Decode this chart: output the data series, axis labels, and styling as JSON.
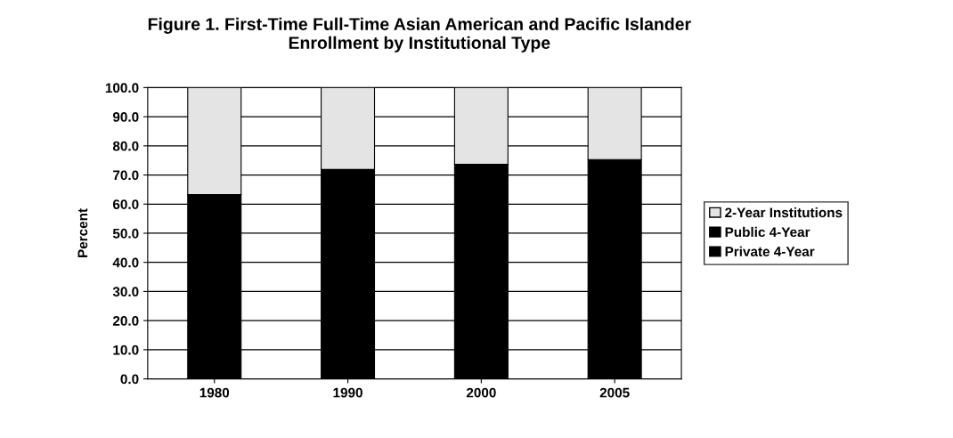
{
  "chart_data": {
    "type": "bar",
    "stacked": true,
    "title": "Figure 1. First-Time Full-Time Asian American and Pacific Islander\nEnrollment by Institutional Type",
    "ylabel": "Percent",
    "categories": [
      "1980",
      "1990",
      "2000",
      "2005"
    ],
    "series": [
      {
        "name": "Private 4-Year",
        "color": "#000000",
        "values": [
          63.3,
          71.9,
          73.7,
          75.3
        ]
      },
      {
        "name": "Public 4-Year",
        "color": "#000000",
        "values": [
          null,
          null,
          null,
          null
        ]
      },
      {
        "name": "2-Year Institutions",
        "color": "#e4e4e4",
        "values": [
          36.7,
          28.1,
          26.3,
          24.7
        ]
      }
    ],
    "ylim": [
      0,
      100
    ],
    "yticks": [
      {
        "value": 0,
        "label": "0.0"
      },
      {
        "value": 10,
        "label": "10.0"
      },
      {
        "value": 20,
        "label": "20.0"
      },
      {
        "value": 30,
        "label": "30.0"
      },
      {
        "value": 40,
        "label": "40.0"
      },
      {
        "value": 50,
        "label": "50.0"
      },
      {
        "value": 60,
        "label": "60.0"
      },
      {
        "value": 70,
        "label": "70.0"
      },
      {
        "value": 80,
        "label": "80.0"
      },
      {
        "value": 90,
        "label": "90.0"
      },
      {
        "value": 100,
        "label": "100.0"
      }
    ],
    "grid": "y",
    "legend": "right"
  }
}
